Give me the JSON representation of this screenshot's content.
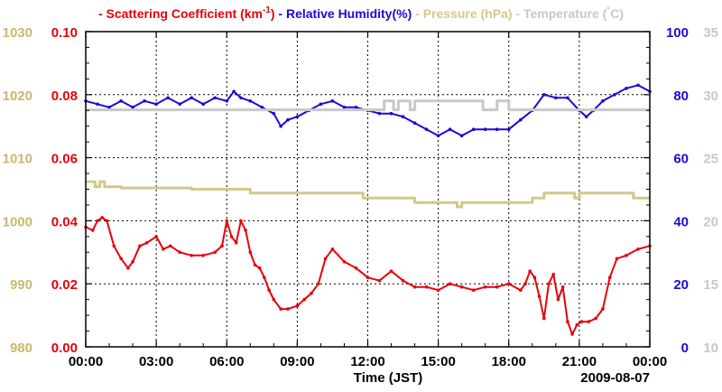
{
  "chart_data": {
    "type": "line",
    "date_label": "2009-08-07",
    "xlabel": "Time (JST)",
    "x_ticks": [
      "00:00",
      "03:00",
      "06:00",
      "09:00",
      "12:00",
      "15:00",
      "18:00",
      "21:00",
      "00:00"
    ],
    "xlim": [
      0,
      24
    ],
    "legend": {
      "items": [
        {
          "key": "scat",
          "dash": "-",
          "text": "Scattering Coefficient (km",
          "sup": "-1",
          "tail": ")",
          "color": "#e8000b"
        },
        {
          "key": "rh",
          "dash": "-",
          "text": "Relative Humidity(%)",
          "sup": "",
          "tail": "",
          "color": "#1a0ad9"
        },
        {
          "key": "pres",
          "dash": "-",
          "text": "Pressure (hPa)",
          "sup": "",
          "tail": "",
          "color": "#d1c98a"
        },
        {
          "key": "temp",
          "dash": "-",
          "text": "Temperature (",
          "sup": "°",
          "tail": "C)",
          "color": "#c8c8c8"
        }
      ]
    },
    "axes": {
      "pressure": {
        "label": "Pressure (hPa)",
        "ylim": [
          980,
          1030
        ],
        "ticks": [
          "980",
          "990",
          "1000",
          "1010",
          "1020",
          "1030"
        ],
        "color": "#c8b870"
      },
      "scattering": {
        "label": "Scattering Coefficient (km-1)",
        "ylim": [
          0.0,
          0.1
        ],
        "ticks": [
          "0.00",
          "0.02",
          "0.04",
          "0.06",
          "0.08",
          "0.10"
        ],
        "color": "#e8000b"
      },
      "humidity": {
        "label": "Relative Humidity(%)",
        "ylim": [
          0,
          100
        ],
        "ticks": [
          "0",
          "20",
          "40",
          "60",
          "80",
          "100"
        ],
        "color": "#1a0ad9"
      },
      "temperature": {
        "label": "Temperature (C)",
        "ylim": [
          10,
          35
        ],
        "ticks": [
          "10",
          "15",
          "20",
          "25",
          "30",
          "35"
        ],
        "color": "#c8c8c8"
      }
    },
    "series": [
      {
        "name": "Scattering Coefficient (km-1)",
        "axis": "scattering",
        "color": "#e8000b",
        "markers": true,
        "x": [
          0,
          0.3,
          0.5,
          0.7,
          0.9,
          1.2,
          1.5,
          1.8,
          2.0,
          2.3,
          2.6,
          3.0,
          3.3,
          3.6,
          4.0,
          4.5,
          5.0,
          5.5,
          5.8,
          6.0,
          6.2,
          6.4,
          6.6,
          6.8,
          7.0,
          7.2,
          7.4,
          7.6,
          7.8,
          8.0,
          8.3,
          8.6,
          9.0,
          9.3,
          9.6,
          9.9,
          10.2,
          10.5,
          11.0,
          11.5,
          12.0,
          12.5,
          13.0,
          13.5,
          14.0,
          14.5,
          15.0,
          15.5,
          16.0,
          16.5,
          17.0,
          17.5,
          18.0,
          18.5,
          18.7,
          18.9,
          19.1,
          19.3,
          19.5,
          19.7,
          19.9,
          20.1,
          20.3,
          20.5,
          20.7,
          20.9,
          21.1,
          21.4,
          21.7,
          22.0,
          22.3,
          22.6,
          23.0,
          23.5,
          24.0
        ],
        "values": [
          0.038,
          0.037,
          0.04,
          0.041,
          0.04,
          0.032,
          0.028,
          0.025,
          0.027,
          0.032,
          0.033,
          0.035,
          0.031,
          0.032,
          0.03,
          0.029,
          0.029,
          0.03,
          0.032,
          0.04,
          0.035,
          0.033,
          0.04,
          0.037,
          0.03,
          0.026,
          0.025,
          0.022,
          0.018,
          0.015,
          0.012,
          0.012,
          0.013,
          0.015,
          0.017,
          0.02,
          0.028,
          0.031,
          0.027,
          0.025,
          0.022,
          0.021,
          0.024,
          0.021,
          0.019,
          0.019,
          0.018,
          0.02,
          0.019,
          0.018,
          0.019,
          0.019,
          0.02,
          0.018,
          0.02,
          0.024,
          0.022,
          0.016,
          0.009,
          0.02,
          0.023,
          0.015,
          0.019,
          0.008,
          0.004,
          0.007,
          0.008,
          0.008,
          0.009,
          0.012,
          0.022,
          0.028,
          0.029,
          0.031,
          0.032
        ]
      },
      {
        "name": "Relative Humidity(%)",
        "axis": "humidity",
        "color": "#1a0ad9",
        "markers": true,
        "x": [
          0,
          0.5,
          1.0,
          1.5,
          2.0,
          2.5,
          3.0,
          3.5,
          4.0,
          4.5,
          5.0,
          5.5,
          6.0,
          6.3,
          6.6,
          7.0,
          7.5,
          8.0,
          8.3,
          8.6,
          9.0,
          9.5,
          10.0,
          10.5,
          11.0,
          11.5,
          12.0,
          12.5,
          13.0,
          13.5,
          14.0,
          14.5,
          15.0,
          15.5,
          16.0,
          16.5,
          17.0,
          17.5,
          18.0,
          18.5,
          19.0,
          19.5,
          20.0,
          20.5,
          21.0,
          21.3,
          21.6,
          22.0,
          22.5,
          23.0,
          23.5,
          24.0
        ],
        "values": [
          78,
          77,
          76,
          78,
          76,
          78,
          77,
          79,
          77,
          79,
          77,
          79,
          78,
          81,
          79,
          78,
          76,
          74,
          70,
          72,
          73,
          75,
          77,
          78,
          76,
          76,
          75,
          74,
          74,
          73,
          71,
          69,
          67,
          69,
          67,
          69,
          69,
          69,
          69,
          72,
          75,
          80,
          79,
          79,
          75,
          73,
          75,
          78,
          80,
          82,
          83,
          81
        ]
      },
      {
        "name": "Pressure (hPa)",
        "axis": "pressure",
        "color": "#d1c98a",
        "markers": false,
        "step": true,
        "x": [
          0,
          0.4,
          0.6,
          0.8,
          1.5,
          3.0,
          4.5,
          5.8,
          7.0,
          9.0,
          10.5,
          11.8,
          13.0,
          14.0,
          15.6,
          15.8,
          16.0,
          16.5,
          18.0,
          19.0,
          19.5,
          20.2,
          20.8,
          21.0,
          22.0,
          22.6,
          23.3,
          24.0
        ],
        "values": [
          1006.2,
          1005.4,
          1006.2,
          1005.4,
          1005.2,
          1005.2,
          1005.0,
          1005.0,
          1004.4,
          1004.4,
          1004.4,
          1003.6,
          1003.6,
          1002.9,
          1002.9,
          1002.2,
          1002.9,
          1002.9,
          1002.9,
          1003.6,
          1004.4,
          1004.4,
          1003.6,
          1004.4,
          1004.4,
          1004.4,
          1003.6,
          1003.6
        ]
      },
      {
        "name": "Temperature (C)",
        "axis": "temperature",
        "color": "#c8c8c8",
        "markers": false,
        "step": true,
        "x": [
          0,
          12.6,
          12.7,
          12.9,
          13.1,
          13.3,
          13.4,
          13.6,
          13.8,
          14.0,
          16.8,
          16.9,
          17.4,
          17.5,
          18.0,
          18.4,
          24.0
        ],
        "values": [
          28.8,
          28.8,
          29.5,
          29.5,
          28.8,
          29.5,
          29.5,
          29.5,
          28.8,
          29.5,
          29.5,
          28.8,
          28.8,
          29.5,
          28.8,
          28.8,
          28.8
        ]
      }
    ]
  }
}
